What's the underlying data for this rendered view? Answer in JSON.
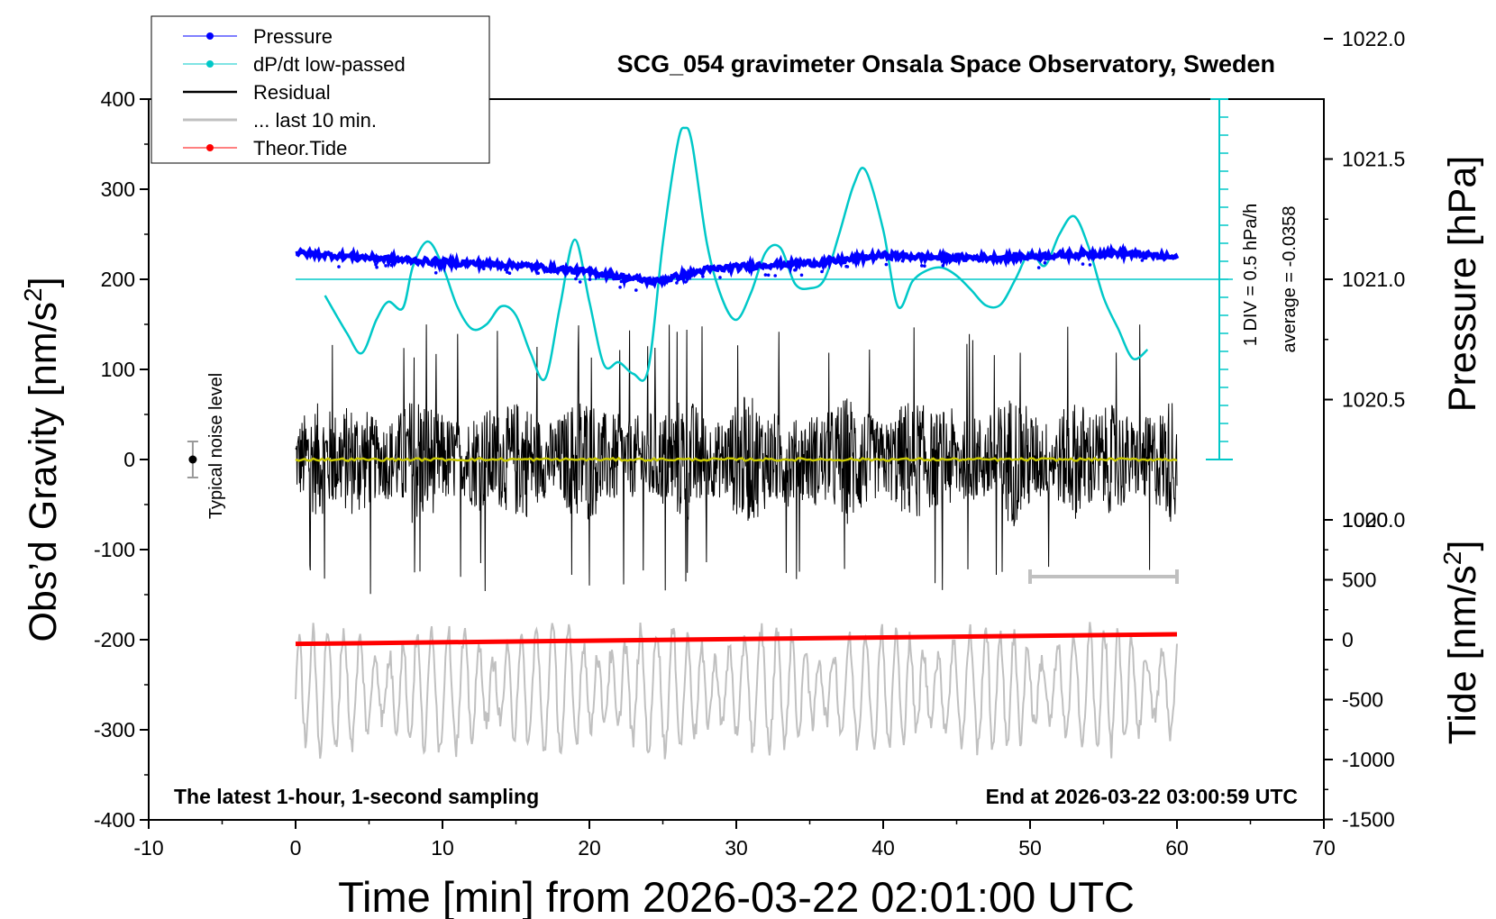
{
  "chart_data": {
    "type": "line",
    "title": "SCG_054 gravimeter Onsala Space Observatory, Sweden",
    "xlabel": "Time [min] from 2026-03-22 02:01:00 UTC",
    "ylabel_left": "Obs'd Gravity [nm/s²]",
    "ylabel_right_top": "Pressure [hPa]",
    "ylabel_right_bottom": "Tide [nm/s²]",
    "xlim": [
      -10,
      70
    ],
    "ylim_left": [
      -400,
      400
    ],
    "x_ticks": [
      "-10",
      "0",
      "10",
      "20",
      "30",
      "40",
      "50",
      "60",
      "70"
    ],
    "y_left_ticks": [
      "400",
      "300",
      "200",
      "100",
      "0",
      "-100",
      "-200",
      "-300",
      "-400"
    ],
    "pressure_axis": {
      "range": [
        1019.5,
        1022.0
      ],
      "ticks": [
        "1022.0",
        "1021.5",
        "1021.0",
        "1020.5",
        "1020.0"
      ]
    },
    "tide_axis": {
      "range": [
        -1500,
        1000
      ],
      "ticks": [
        "1000",
        "500",
        "0",
        "-500",
        "-1000",
        "-1500"
      ]
    },
    "grid": false,
    "legend_position": "top-left",
    "legend": [
      {
        "label": "Pressure",
        "color": "#0000ff",
        "style": "line-dot"
      },
      {
        "label": "dP/dt low-passed",
        "color": "#00c8c8",
        "style": "line-dot"
      },
      {
        "label": "Residual",
        "color": "#000000",
        "style": "line"
      },
      {
        "label": "... last 10 min.",
        "color": "#c0c0c0",
        "style": "line"
      },
      {
        "label": "Theor.Tide",
        "color": "#ff0000",
        "style": "line-dot"
      }
    ],
    "annotations": {
      "noise_level_label": "Typical noise level",
      "div_label": "1 DIV = 0.5 hPa/h",
      "average_label": "average = -0.0358",
      "bottom_left": "The latest 1-hour, 1-second sampling",
      "bottom_right": "End at 2026-03-22 03:00:59 UTC"
    },
    "series": [
      {
        "name": "Pressure",
        "color": "#0000ff",
        "axis": "pressure_hpa",
        "x": [
          0,
          5,
          10,
          15,
          20,
          24.5,
          28,
          32,
          36,
          40,
          44,
          48,
          52,
          56,
          60
        ],
        "values": [
          1021.11,
          1021.09,
          1021.07,
          1021.06,
          1021.03,
          1020.99,
          1021.04,
          1021.06,
          1021.07,
          1021.1,
          1021.09,
          1021.09,
          1021.1,
          1021.11,
          1021.09
        ]
      },
      {
        "name": "dP/dt low-passed",
        "color": "#00c8c8",
        "axis": "gravity_nm_s2",
        "x": [
          2,
          3.5,
          4.5,
          5.5,
          6.3,
          7.3,
          8,
          9,
          10,
          11,
          12,
          13,
          14,
          15,
          16,
          17,
          18,
          19,
          20,
          21,
          22,
          23,
          24,
          25,
          26,
          26.5,
          27,
          28,
          29,
          30,
          31,
          32,
          33,
          34,
          35,
          36,
          37,
          38,
          38.8,
          40,
          41,
          42,
          43,
          44,
          45,
          46,
          47,
          48,
          49,
          50,
          51,
          52,
          53,
          54,
          55,
          56,
          57,
          58
        ],
        "values": [
          182,
          140,
          118,
          155,
          175,
          168,
          215,
          242,
          215,
          170,
          145,
          150,
          170,
          160,
          118,
          90,
          170,
          244,
          175,
          105,
          108,
          95,
          100,
          240,
          350,
          368,
          350,
          240,
          180,
          155,
          185,
          230,
          235,
          195,
          190,
          200,
          250,
          305,
          321,
          255,
          170,
          198,
          210,
          213,
          204,
          188,
          171,
          172,
          200,
          230,
          215,
          250,
          270,
          235,
          180,
          145,
          112,
          122
        ]
      },
      {
        "name": "Residual",
        "color": "#000000",
        "axis": "gravity_nm_s2",
        "x_range": [
          0,
          60
        ],
        "envelope": {
          "typical_amplitude": 60,
          "max_amplitude": 150
        }
      },
      {
        "name": "... last 10 min.",
        "color": "#c0c0c0",
        "axis": "gravity_nm_s2",
        "x_range": [
          0,
          60
        ],
        "x_scale_bar": [
          50,
          60
        ],
        "center": -255,
        "typical_amplitude": 45,
        "max_amplitude": 90
      },
      {
        "name": "Theor.Tide",
        "color": "#ff0000",
        "axis": "tide_nm_s2",
        "x": [
          0,
          60
        ],
        "values": [
          -35,
          45
        ]
      },
      {
        "name": "Residual low-passed",
        "color": "#c8c800",
        "axis": "gravity_nm_s2",
        "x_range": [
          0,
          60
        ],
        "values_level": 0
      }
    ],
    "noise_level_bar": {
      "x": -7,
      "y": 0,
      "half_range": 20
    }
  }
}
